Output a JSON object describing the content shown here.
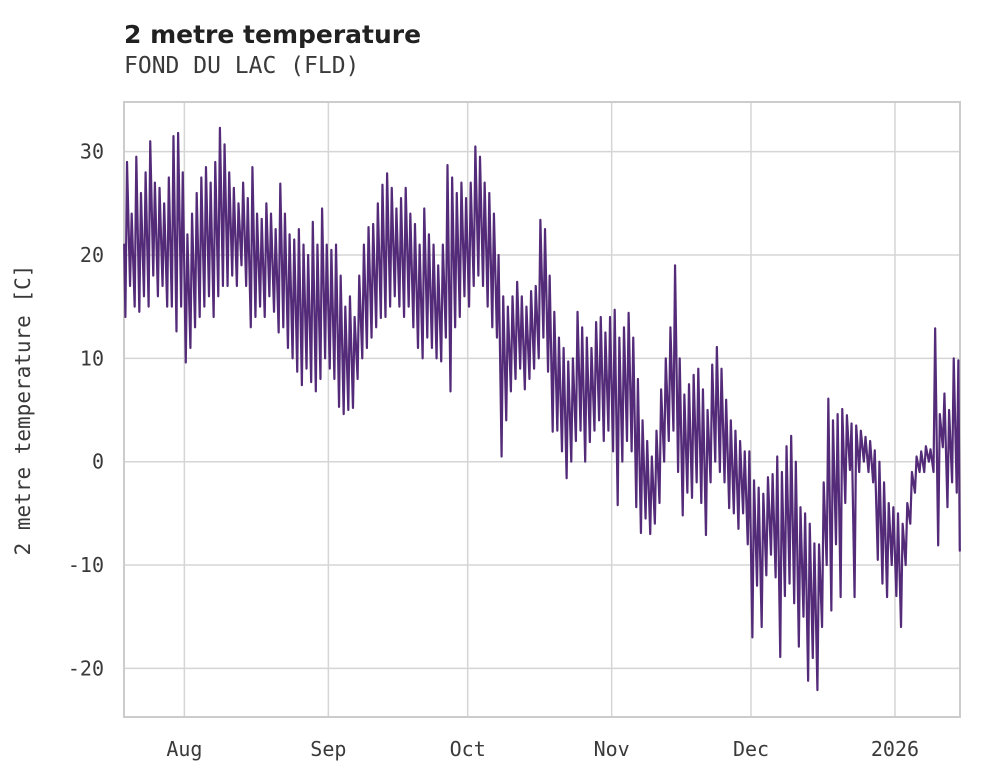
{
  "chart_data": {
    "type": "line",
    "title": "2 metre temperature",
    "subtitle": "FOND DU LAC (FLD)",
    "ylabel": "2 metre temperature [C]",
    "line_color": "#542b78",
    "grid_color": "#d5d5d5",
    "border_color": "#cccccc",
    "legend": "none",
    "grid": true,
    "ylim": [
      -24.7,
      34.8
    ],
    "yticks": [
      30,
      20,
      10,
      0,
      -10,
      -20
    ],
    "xlim_days": [
      0,
      180
    ],
    "xticks": [
      {
        "label": "Aug",
        "day": 13
      },
      {
        "label": "Sep",
        "day": 44
      },
      {
        "label": "Oct",
        "day": 74
      },
      {
        "label": "Nov",
        "day": 105
      },
      {
        "label": "Dec",
        "day": 135
      },
      {
        "label": "2026",
        "day": 166
      }
    ],
    "start_point": {
      "day": 0.05,
      "value": 21
    },
    "end_point": {
      "day": 179.95,
      "value": -8.6
    },
    "daily_min": [
      14,
      17,
      15,
      14.5,
      16,
      15,
      18,
      16,
      17,
      15,
      15,
      12.6,
      15,
      9.6,
      11,
      13,
      14,
      15,
      16,
      14,
      16,
      17,
      17,
      18,
      17,
      19,
      17,
      13,
      14,
      15,
      14,
      16,
      14.5,
      12.5,
      13,
      11,
      10,
      8.7,
      7.4,
      9,
      7.7,
      6.8,
      8,
      10,
      9,
      8,
      5.3,
      4.6,
      5,
      5.2,
      8,
      10,
      11,
      12,
      13,
      13.9,
      14,
      15,
      16,
      15,
      14,
      15,
      13,
      11,
      10,
      12,
      11,
      10,
      9.7,
      12,
      6.8,
      13,
      14,
      16,
      15,
      17,
      18,
      17,
      15,
      13,
      12,
      0.5,
      4,
      6.8,
      8,
      9,
      7,
      8,
      9,
      10,
      12,
      8.7,
      2.9,
      3,
      1,
      -1.6,
      0,
      2,
      3,
      0,
      1.9,
      3,
      4,
      2,
      3,
      1,
      -4.2,
      0,
      2,
      1,
      -4.4,
      -6.9,
      -5.5,
      -7,
      -6,
      -4,
      0,
      2,
      3,
      -1,
      -5.2,
      -3,
      -3.5,
      -2,
      -4,
      -7.1,
      -2,
      0,
      -1,
      -2,
      -4.5,
      -5,
      -6.5,
      -5,
      -8,
      -17,
      -12,
      -16,
      -11,
      -9,
      -11.2,
      -18.9,
      -13,
      -11.8,
      -13.7,
      -17.9,
      -15,
      -21.2,
      -19,
      -22.1,
      -16,
      -10,
      -14.4,
      -8,
      -13.1,
      -4,
      -0.8,
      -13.1,
      -1,
      0,
      -1,
      -2,
      -9.5,
      -11.8,
      -13.1,
      -10,
      -13,
      -16,
      -10,
      -6,
      -3,
      -1,
      -1,
      0,
      -1,
      -8.1,
      1.4,
      -4.4,
      -2,
      -3
    ],
    "daily_max": [
      29,
      24,
      29.5,
      26,
      28,
      31,
      27,
      26.5,
      25,
      27.5,
      31.5,
      31.8,
      28,
      22,
      24,
      26,
      27.5,
      28.5,
      27,
      29,
      32.3,
      30.7,
      28,
      26.5,
      25,
      27,
      25.5,
      28.5,
      24,
      23.5,
      25,
      24,
      22.5,
      26.9,
      24,
      22,
      21.5,
      22.5,
      21,
      20,
      23.2,
      21,
      24.5,
      21,
      20.5,
      21,
      18,
      15,
      16,
      14,
      18,
      21,
      22.7,
      23,
      25,
      26.8,
      27.9,
      26.5,
      24.5,
      25.5,
      26.5,
      24,
      23,
      21,
      24.5,
      22,
      21,
      19,
      21,
      28.7,
      27.5,
      26,
      27,
      25.5,
      27,
      30.5,
      29.5,
      27,
      26,
      24,
      20,
      16,
      15,
      16,
      17.4,
      16,
      15,
      16.5,
      17,
      23.4,
      22.5,
      18,
      14.5,
      12,
      11,
      9.7,
      10,
      14.5,
      13,
      12,
      11,
      13.5,
      14,
      12.5,
      14,
      14.7,
      12,
      13,
      14.4,
      12,
      8,
      4,
      2,
      0.5,
      3,
      7,
      10,
      13,
      19,
      10,
      6.5,
      7.5,
      8.4,
      9,
      7,
      5,
      9.4,
      11.1,
      9,
      6,
      4,
      3,
      2,
      1,
      1,
      -1.8,
      -2.5,
      -3.1,
      -1.5,
      -1.2,
      0.5,
      -1,
      1.5,
      2.5,
      0,
      -4.4,
      -5,
      -6,
      -7.9,
      -8,
      -2,
      6.1,
      4,
      4.6,
      5.1,
      4.5,
      3.7,
      3.5,
      3,
      2.4,
      2,
      1.1,
      0,
      -2,
      -4,
      -4.4,
      -5,
      -6,
      -4,
      -1,
      0.5,
      1,
      1.5,
      1.2,
      12.9,
      4.6,
      6.6,
      5,
      10,
      9.8
    ]
  }
}
